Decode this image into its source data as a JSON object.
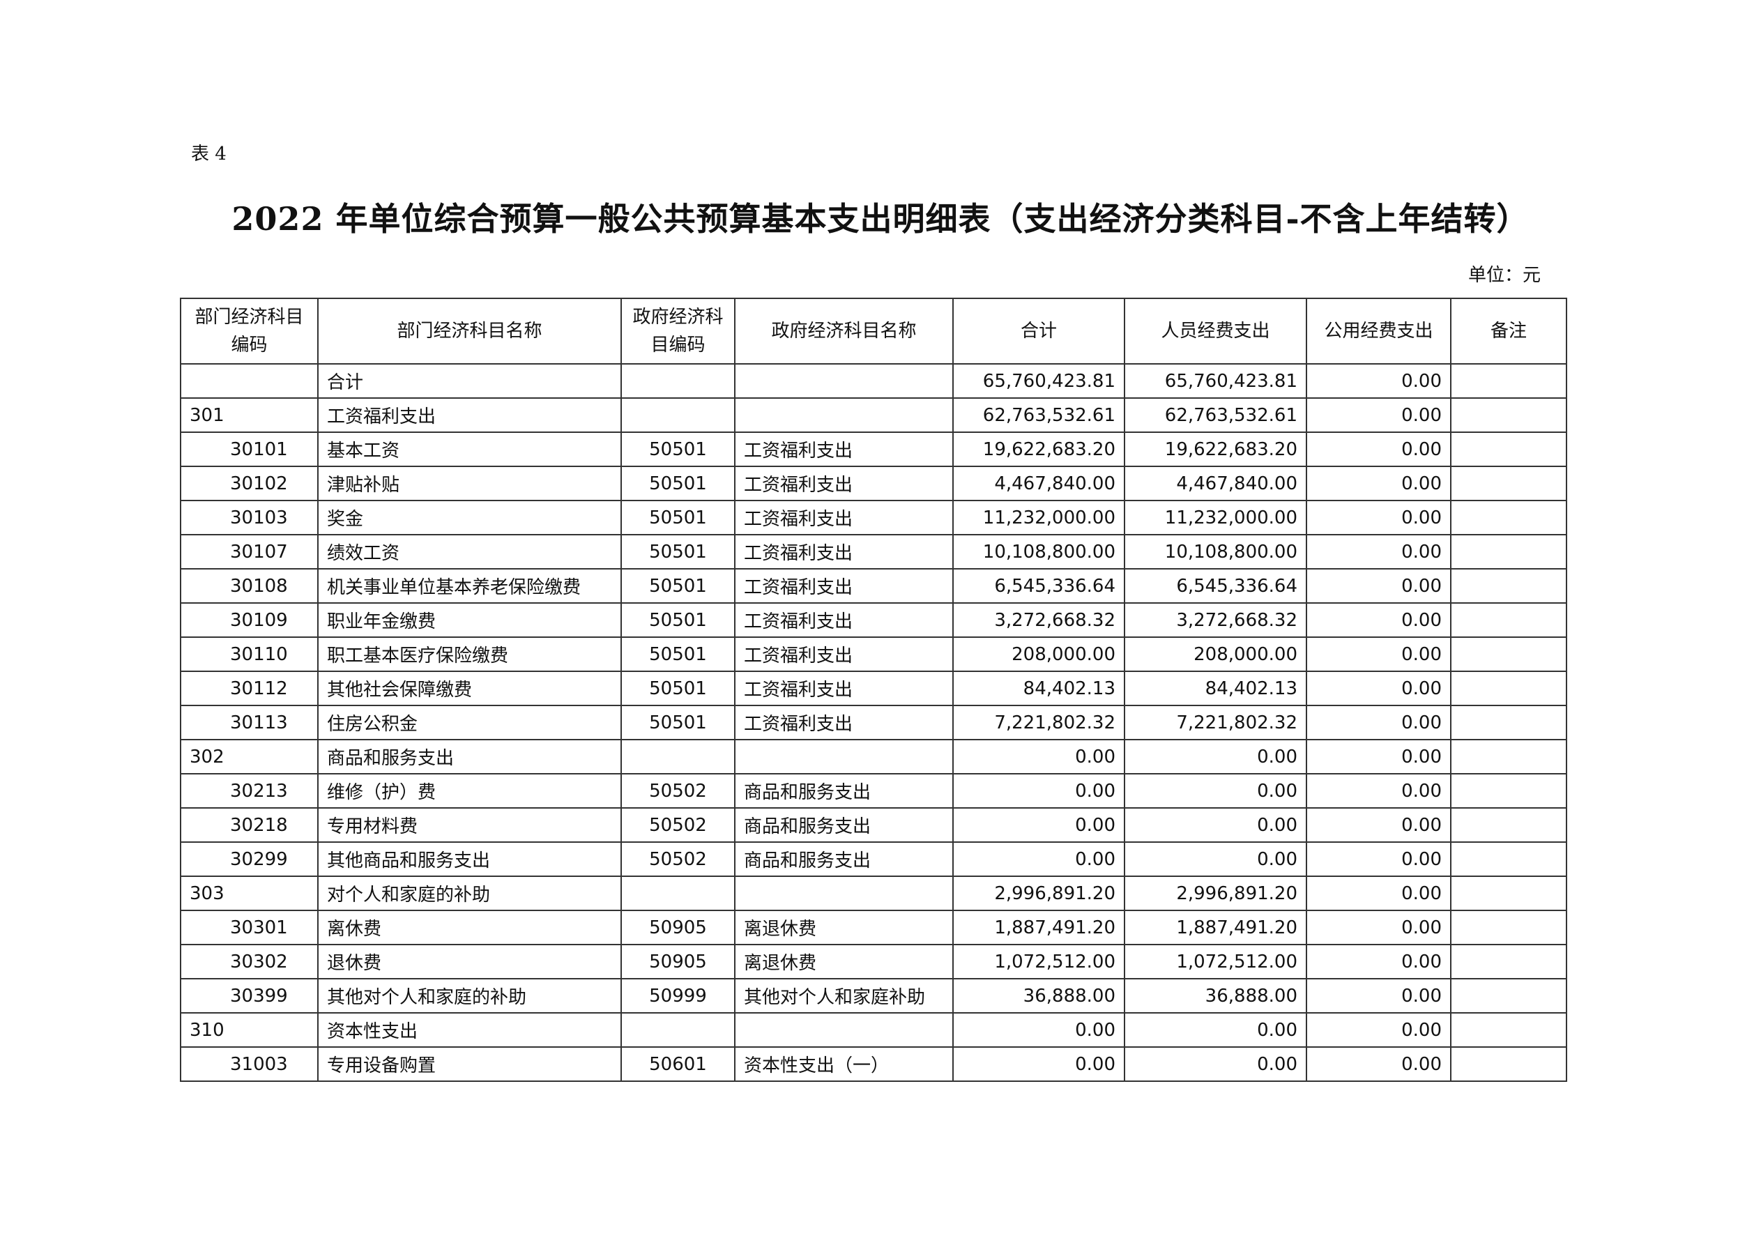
{
  "label": "表 4",
  "title": "2022 年单位综合预算一般公共预算基本支出明细表（支出经济分类科目-不含上年结转）",
  "unit": "单位：元",
  "headers": [
    "部门经济科目编码",
    "部门经济科目名称",
    "政府经济科目编码",
    "政府经济科目名称",
    "合计",
    "人员经费支出",
    "公用经费支出",
    "备注"
  ],
  "rows": [
    {
      "code": "",
      "name": "合计",
      "gcode": "",
      "gname": "",
      "total": "65,760,423.81",
      "personnel": "65,760,423.81",
      "public": "0.00",
      "note": "",
      "level": 0
    },
    {
      "code": "301",
      "name": "工资福利支出",
      "gcode": "",
      "gname": "",
      "total": "62,763,532.61",
      "personnel": "62,763,532.61",
      "public": "0.00",
      "note": "",
      "level": 0
    },
    {
      "code": "30101",
      "name": "基本工资",
      "gcode": "50501",
      "gname": "工资福利支出",
      "total": "19,622,683.20",
      "personnel": "19,622,683.20",
      "public": "0.00",
      "note": "",
      "level": 1
    },
    {
      "code": "30102",
      "name": "津贴补贴",
      "gcode": "50501",
      "gname": "工资福利支出",
      "total": "4,467,840.00",
      "personnel": "4,467,840.00",
      "public": "0.00",
      "note": "",
      "level": 1
    },
    {
      "code": "30103",
      "name": "奖金",
      "gcode": "50501",
      "gname": "工资福利支出",
      "total": "11,232,000.00",
      "personnel": "11,232,000.00",
      "public": "0.00",
      "note": "",
      "level": 1
    },
    {
      "code": "30107",
      "name": "绩效工资",
      "gcode": "50501",
      "gname": "工资福利支出",
      "total": "10,108,800.00",
      "personnel": "10,108,800.00",
      "public": "0.00",
      "note": "",
      "level": 1
    },
    {
      "code": "30108",
      "name": "机关事业单位基本养老保险缴费",
      "gcode": "50501",
      "gname": "工资福利支出",
      "total": "6,545,336.64",
      "personnel": "6,545,336.64",
      "public": "0.00",
      "note": "",
      "level": 1
    },
    {
      "code": "30109",
      "name": "职业年金缴费",
      "gcode": "50501",
      "gname": "工资福利支出",
      "total": "3,272,668.32",
      "personnel": "3,272,668.32",
      "public": "0.00",
      "note": "",
      "level": 1
    },
    {
      "code": "30110",
      "name": "职工基本医疗保险缴费",
      "gcode": "50501",
      "gname": "工资福利支出",
      "total": "208,000.00",
      "personnel": "208,000.00",
      "public": "0.00",
      "note": "",
      "level": 1
    },
    {
      "code": "30112",
      "name": "其他社会保障缴费",
      "gcode": "50501",
      "gname": "工资福利支出",
      "total": "84,402.13",
      "personnel": "84,402.13",
      "public": "0.00",
      "note": "",
      "level": 1
    },
    {
      "code": "30113",
      "name": "住房公积金",
      "gcode": "50501",
      "gname": "工资福利支出",
      "total": "7,221,802.32",
      "personnel": "7,221,802.32",
      "public": "0.00",
      "note": "",
      "level": 1
    },
    {
      "code": "302",
      "name": "商品和服务支出",
      "gcode": "",
      "gname": "",
      "total": "0.00",
      "personnel": "0.00",
      "public": "0.00",
      "note": "",
      "level": 0
    },
    {
      "code": "30213",
      "name": "维修（护）费",
      "gcode": "50502",
      "gname": "商品和服务支出",
      "total": "0.00",
      "personnel": "0.00",
      "public": "0.00",
      "note": "",
      "level": 1
    },
    {
      "code": "30218",
      "name": "专用材料费",
      "gcode": "50502",
      "gname": "商品和服务支出",
      "total": "0.00",
      "personnel": "0.00",
      "public": "0.00",
      "note": "",
      "level": 1
    },
    {
      "code": "30299",
      "name": "其他商品和服务支出",
      "gcode": "50502",
      "gname": "商品和服务支出",
      "total": "0.00",
      "personnel": "0.00",
      "public": "0.00",
      "note": "",
      "level": 1
    },
    {
      "code": "303",
      "name": "对个人和家庭的补助",
      "gcode": "",
      "gname": "",
      "total": "2,996,891.20",
      "personnel": "2,996,891.20",
      "public": "0.00",
      "note": "",
      "level": 0
    },
    {
      "code": "30301",
      "name": "离休费",
      "gcode": "50905",
      "gname": "离退休费",
      "total": "1,887,491.20",
      "personnel": "1,887,491.20",
      "public": "0.00",
      "note": "",
      "level": 1
    },
    {
      "code": "30302",
      "name": "退休费",
      "gcode": "50905",
      "gname": "离退休费",
      "total": "1,072,512.00",
      "personnel": "1,072,512.00",
      "public": "0.00",
      "note": "",
      "level": 1
    },
    {
      "code": "30399",
      "name": "其他对个人和家庭的补助",
      "gcode": "50999",
      "gname": "其他对个人和家庭补助",
      "total": "36,888.00",
      "personnel": "36,888.00",
      "public": "0.00",
      "note": "",
      "level": 1
    },
    {
      "code": "310",
      "name": "资本性支出",
      "gcode": "",
      "gname": "",
      "total": "0.00",
      "personnel": "0.00",
      "public": "0.00",
      "note": "",
      "level": 0
    },
    {
      "code": "31003",
      "name": "专用设备购置",
      "gcode": "50601",
      "gname": "资本性支出（一）",
      "total": "0.00",
      "personnel": "0.00",
      "public": "0.00",
      "note": "",
      "level": 1
    }
  ]
}
